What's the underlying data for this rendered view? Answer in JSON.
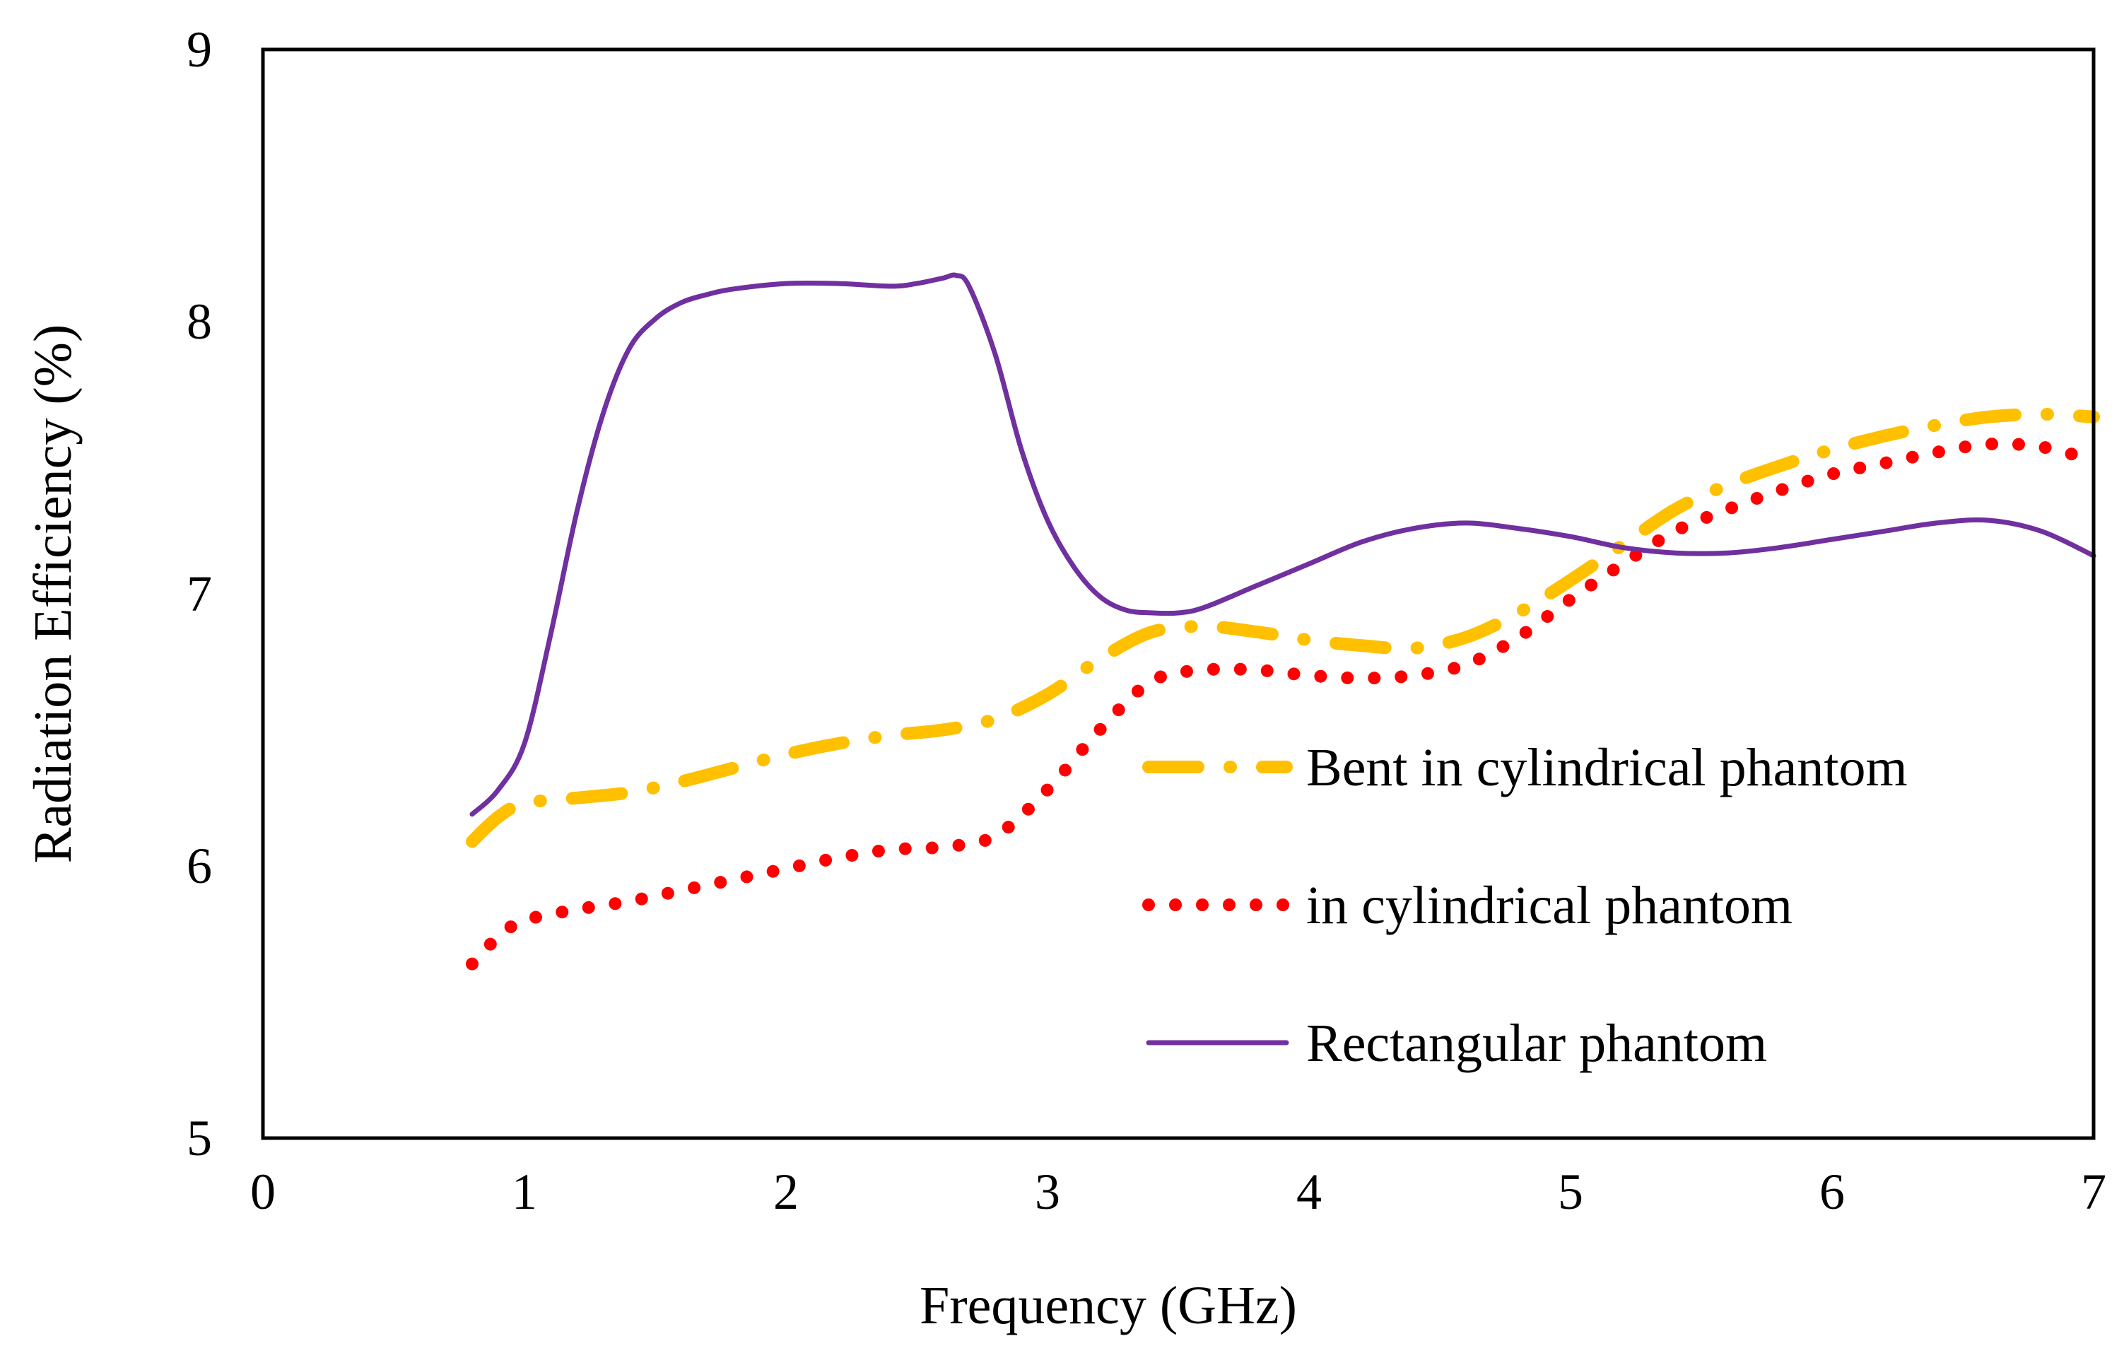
{
  "chart_data": {
    "type": "line",
    "title": "",
    "xlabel": "Frequency (GHz)",
    "ylabel": "Radiation Efficiency (%)",
    "xlim": [
      0,
      7
    ],
    "ylim": [
      5,
      9
    ],
    "xticks": [
      0,
      1,
      2,
      3,
      4,
      5,
      6,
      7
    ],
    "yticks": [
      5,
      6,
      7,
      8,
      9
    ],
    "grid": false,
    "legend_position": "right-center",
    "series": [
      {
        "name": "Bent in cylindrical phantom",
        "style": "dash-dot",
        "color": "#FFC000",
        "x": [
          0.8,
          0.9,
          1.0,
          1.2,
          1.4,
          1.6,
          1.8,
          2.0,
          2.2,
          2.4,
          2.6,
          2.8,
          3.0,
          3.2,
          3.4,
          3.6,
          3.8,
          4.0,
          4.2,
          4.4,
          4.6,
          4.8,
          5.0,
          5.2,
          5.4,
          5.6,
          5.8,
          6.0,
          6.2,
          6.4,
          6.6,
          6.8,
          7.0
        ],
        "y": [
          6.09,
          6.18,
          6.23,
          6.25,
          6.27,
          6.31,
          6.36,
          6.41,
          6.45,
          6.48,
          6.5,
          6.54,
          6.63,
          6.76,
          6.86,
          6.88,
          6.86,
          6.83,
          6.81,
          6.8,
          6.84,
          6.93,
          7.05,
          7.18,
          7.31,
          7.4,
          7.47,
          7.53,
          7.58,
          7.62,
          7.65,
          7.66,
          7.65
        ]
      },
      {
        "name": "in cylindrical phantom",
        "style": "dotted",
        "color": "#FF0000",
        "x": [
          0.8,
          0.9,
          1.0,
          1.2,
          1.4,
          1.6,
          1.8,
          2.0,
          2.2,
          2.4,
          2.6,
          2.8,
          3.0,
          3.2,
          3.4,
          3.6,
          3.8,
          4.0,
          4.2,
          4.4,
          4.6,
          4.8,
          5.0,
          5.2,
          5.4,
          5.6,
          5.8,
          6.0,
          6.2,
          6.4,
          6.6,
          6.8,
          7.0
        ],
        "y": [
          5.64,
          5.74,
          5.8,
          5.84,
          5.87,
          5.91,
          5.95,
          5.99,
          6.03,
          6.06,
          6.07,
          6.11,
          6.28,
          6.5,
          6.68,
          6.72,
          6.72,
          6.7,
          6.69,
          6.7,
          6.74,
          6.84,
          6.98,
          7.11,
          7.23,
          7.31,
          7.38,
          7.44,
          7.48,
          7.52,
          7.55,
          7.54,
          7.49
        ]
      },
      {
        "name": "Rectangular phantom",
        "style": "solid",
        "color": "#7030A0",
        "x": [
          0.8,
          0.9,
          1.0,
          1.1,
          1.2,
          1.3,
          1.4,
          1.5,
          1.6,
          1.7,
          1.8,
          2.0,
          2.2,
          2.4,
          2.5,
          2.6,
          2.65,
          2.7,
          2.8,
          2.9,
          3.0,
          3.1,
          3.2,
          3.3,
          3.4,
          3.5,
          3.6,
          3.8,
          4.0,
          4.2,
          4.4,
          4.6,
          4.8,
          5.0,
          5.2,
          5.4,
          5.6,
          5.8,
          6.0,
          6.2,
          6.4,
          6.6,
          6.8,
          7.0
        ],
        "y": [
          6.19,
          6.28,
          6.45,
          6.85,
          7.3,
          7.66,
          7.9,
          8.01,
          8.07,
          8.1,
          8.12,
          8.14,
          8.14,
          8.13,
          8.14,
          8.16,
          8.17,
          8.13,
          7.88,
          7.53,
          7.27,
          7.1,
          6.99,
          6.94,
          6.93,
          6.93,
          6.95,
          7.03,
          7.11,
          7.19,
          7.24,
          7.26,
          7.24,
          7.21,
          7.17,
          7.15,
          7.15,
          7.17,
          7.2,
          7.23,
          7.26,
          7.27,
          7.23,
          7.14
        ]
      }
    ]
  }
}
